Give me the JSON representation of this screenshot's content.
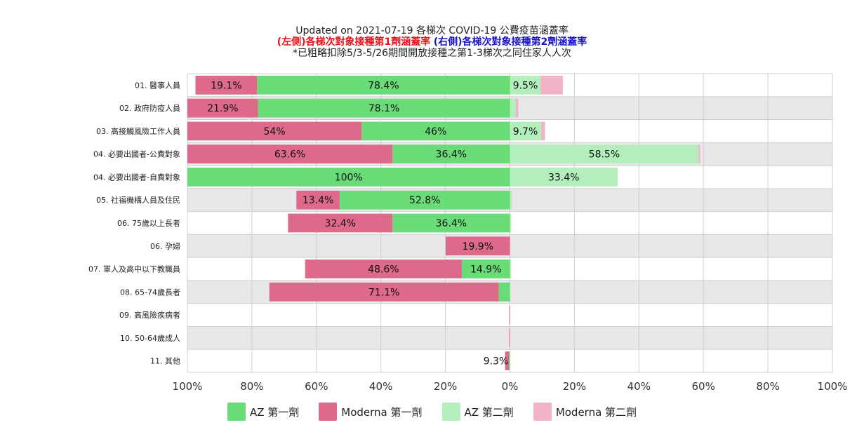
{
  "title": {
    "line1": "Updated on 2021-07-19 各梯次 COVID-19 公費疫苗涵蓋率",
    "line2_left": "(左側)各梯次對象接種第1劑涵蓋率",
    "line2_right": "(右側)各梯次對象接種第2劑涵蓋率",
    "line3": "*已粗略扣除5/3-5/26期間開放接種之第1-3梯次之同住家人人次"
  },
  "colors": {
    "az_dose1": "#69dc78",
    "moderna_dose1": "#de698a",
    "az_dose2": "#b3efbc",
    "moderna_dose2": "#f0b4c6",
    "band": "#e8e8e8",
    "grid": "#cfcfcf"
  },
  "legend": [
    {
      "label": "AZ 第一劑",
      "color_key": "az_dose1"
    },
    {
      "label": "Moderna 第一劑",
      "color_key": "moderna_dose1"
    },
    {
      "label": "AZ 第二劑",
      "color_key": "az_dose2"
    },
    {
      "label": "Moderna 第二劑",
      "color_key": "moderna_dose2"
    }
  ],
  "chart_data": {
    "type": "bar",
    "orientation": "horizontal-diverging",
    "xlim": [
      -100,
      100
    ],
    "x_ticks": [
      "100%",
      "80%",
      "60%",
      "40%",
      "20%",
      "0%",
      "20%",
      "40%",
      "60%",
      "80%",
      "100%"
    ],
    "categories": [
      "01. 醫事人員",
      "02. 政府防疫人員",
      "03. 高接觸風險工作人員",
      "04. 必要出國者-公費對象",
      "04. 必要出國者-自費對象",
      "05. 社福機構人員及住民",
      "06. 75歲以上長者",
      "06. 孕婦",
      "07. 軍人及高中以下教職員",
      "08. 65-74歲長者",
      "09. 高風險疾病者",
      "10. 50-64歲成人",
      "11. 其他"
    ],
    "series": [
      {
        "name": "AZ 第一劑",
        "side": "left",
        "values": [
          78.4,
          78.1,
          46,
          36.4,
          100,
          52.8,
          36.4,
          0,
          14.9,
          3.5,
          0,
          0,
          0.3
        ],
        "labels": [
          "78.4%",
          "78.1%",
          "46%",
          "36.4%",
          "100%",
          "52.8%",
          "36.4%",
          "",
          "14.9%",
          "",
          "",
          "",
          ""
        ]
      },
      {
        "name": "Moderna 第一劑",
        "side": "left",
        "values": [
          19.1,
          21.9,
          54,
          63.6,
          0,
          13.4,
          32.4,
          19.9,
          48.6,
          71.1,
          0.2,
          0.2,
          1.2
        ],
        "labels": [
          "19.1%",
          "21.9%",
          "54%",
          "63.6%",
          "",
          "13.4%",
          "32.4%",
          "19.9%",
          "48.6%",
          "71.1%",
          "",
          "",
          ""
        ]
      },
      {
        "name": "AZ 第二劑",
        "side": "right",
        "values": [
          9.5,
          1.8,
          9.7,
          58.5,
          33.4,
          0.5,
          0.3,
          0,
          0.3,
          0.2,
          0,
          0,
          0
        ],
        "labels": [
          "9.5%",
          "",
          "9.7%",
          "58.5%",
          "33.4%",
          "",
          "",
          "",
          "",
          "",
          "",
          "",
          ""
        ]
      },
      {
        "name": "Moderna 第二劑",
        "side": "right",
        "values": [
          6.9,
          0.8,
          1.2,
          0.5,
          0,
          0.1,
          0,
          0,
          0,
          0,
          0,
          0,
          0
        ],
        "labels": [
          "",
          "",
          "",
          "",
          "",
          "",
          "",
          "",
          "",
          "",
          "",
          "",
          ""
        ]
      }
    ],
    "right_label_moderna_row11": "9.3%",
    "grid": true,
    "legend_position": "bottom"
  }
}
